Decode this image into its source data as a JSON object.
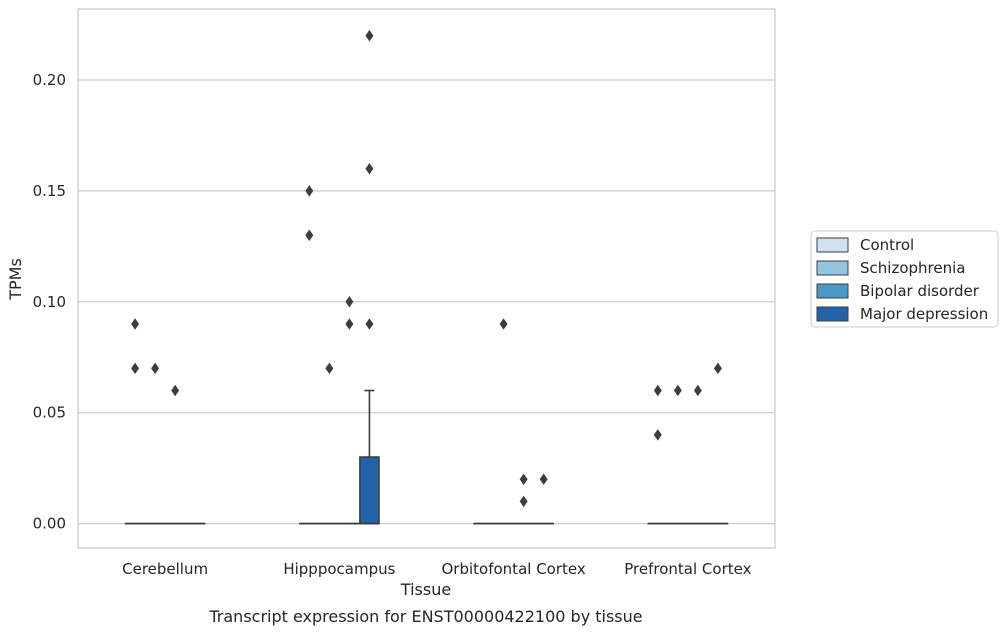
{
  "chart_data": {
    "type": "box",
    "title": "",
    "caption": "Transcript expression for ENST00000422100 by tissue",
    "xlabel": "Tissue",
    "ylabel": "TPMs",
    "ylim": [
      -0.011,
      0.232
    ],
    "yticks": [
      0.0,
      0.05,
      0.1,
      0.15,
      0.2
    ],
    "ytick_labels": [
      "0.00",
      "0.05",
      "0.10",
      "0.15",
      "0.20"
    ],
    "grid": "horizontal",
    "legend_position": "right",
    "categories": [
      "Cerebellum",
      "Hipppocampus",
      "Orbitofontal Cortex",
      "Prefrontal Cortex"
    ],
    "series": [
      {
        "name": "Control",
        "color": "#d0e1f2",
        "boxes": [
          {
            "q1": 0,
            "median": 0,
            "q3": 0,
            "whisker_low": 0,
            "whisker_high": 0,
            "outliers": [
              0.09,
              0.07
            ]
          },
          {
            "q1": 0,
            "median": 0,
            "q3": 0,
            "whisker_low": 0,
            "whisker_high": 0,
            "outliers": [
              0.15,
              0.13
            ]
          },
          {
            "q1": 0,
            "median": 0,
            "q3": 0,
            "whisker_low": 0,
            "whisker_high": 0,
            "outliers": []
          },
          {
            "q1": 0,
            "median": 0,
            "q3": 0,
            "whisker_low": 0,
            "whisker_high": 0,
            "outliers": [
              0.06,
              0.04
            ]
          }
        ]
      },
      {
        "name": "Schizophrenia",
        "color": "#94c4df",
        "boxes": [
          {
            "q1": 0,
            "median": 0,
            "q3": 0,
            "whisker_low": 0,
            "whisker_high": 0,
            "outliers": [
              0.07
            ]
          },
          {
            "q1": 0,
            "median": 0,
            "q3": 0,
            "whisker_low": 0,
            "whisker_high": 0,
            "outliers": [
              0.07
            ]
          },
          {
            "q1": 0,
            "median": 0,
            "q3": 0,
            "whisker_low": 0,
            "whisker_high": 0,
            "outliers": [
              0.09
            ]
          },
          {
            "q1": 0,
            "median": 0,
            "q3": 0,
            "whisker_low": 0,
            "whisker_high": 0,
            "outliers": [
              0.06
            ]
          }
        ]
      },
      {
        "name": "Bipolar disorder",
        "color": "#4a98c9",
        "boxes": [
          {
            "q1": 0,
            "median": 0,
            "q3": 0,
            "whisker_low": 0,
            "whisker_high": 0,
            "outliers": [
              0.06
            ]
          },
          {
            "q1": 0,
            "median": 0,
            "q3": 0,
            "whisker_low": 0,
            "whisker_high": 0,
            "outliers": [
              0.1,
              0.09
            ]
          },
          {
            "q1": 0,
            "median": 0,
            "q3": 0,
            "whisker_low": 0,
            "whisker_high": 0,
            "outliers": [
              0.02,
              0.01
            ]
          },
          {
            "q1": 0,
            "median": 0,
            "q3": 0,
            "whisker_low": 0,
            "whisker_high": 0,
            "outliers": [
              0.06
            ]
          }
        ]
      },
      {
        "name": "Major depression",
        "color": "#2164ab",
        "boxes": [
          {
            "q1": 0,
            "median": 0,
            "q3": 0,
            "whisker_low": 0,
            "whisker_high": 0,
            "outliers": []
          },
          {
            "q1": 0,
            "median": 0,
            "q3": 0.03,
            "whisker_low": 0,
            "whisker_high": 0.06,
            "outliers": [
              0.22,
              0.16,
              0.09
            ]
          },
          {
            "q1": 0,
            "median": 0,
            "q3": 0,
            "whisker_low": 0,
            "whisker_high": 0,
            "outliers": [
              0.02
            ]
          },
          {
            "q1": 0,
            "median": 0,
            "q3": 0,
            "whisker_low": 0,
            "whisker_high": 0,
            "outliers": [
              0.07
            ]
          }
        ]
      }
    ]
  }
}
